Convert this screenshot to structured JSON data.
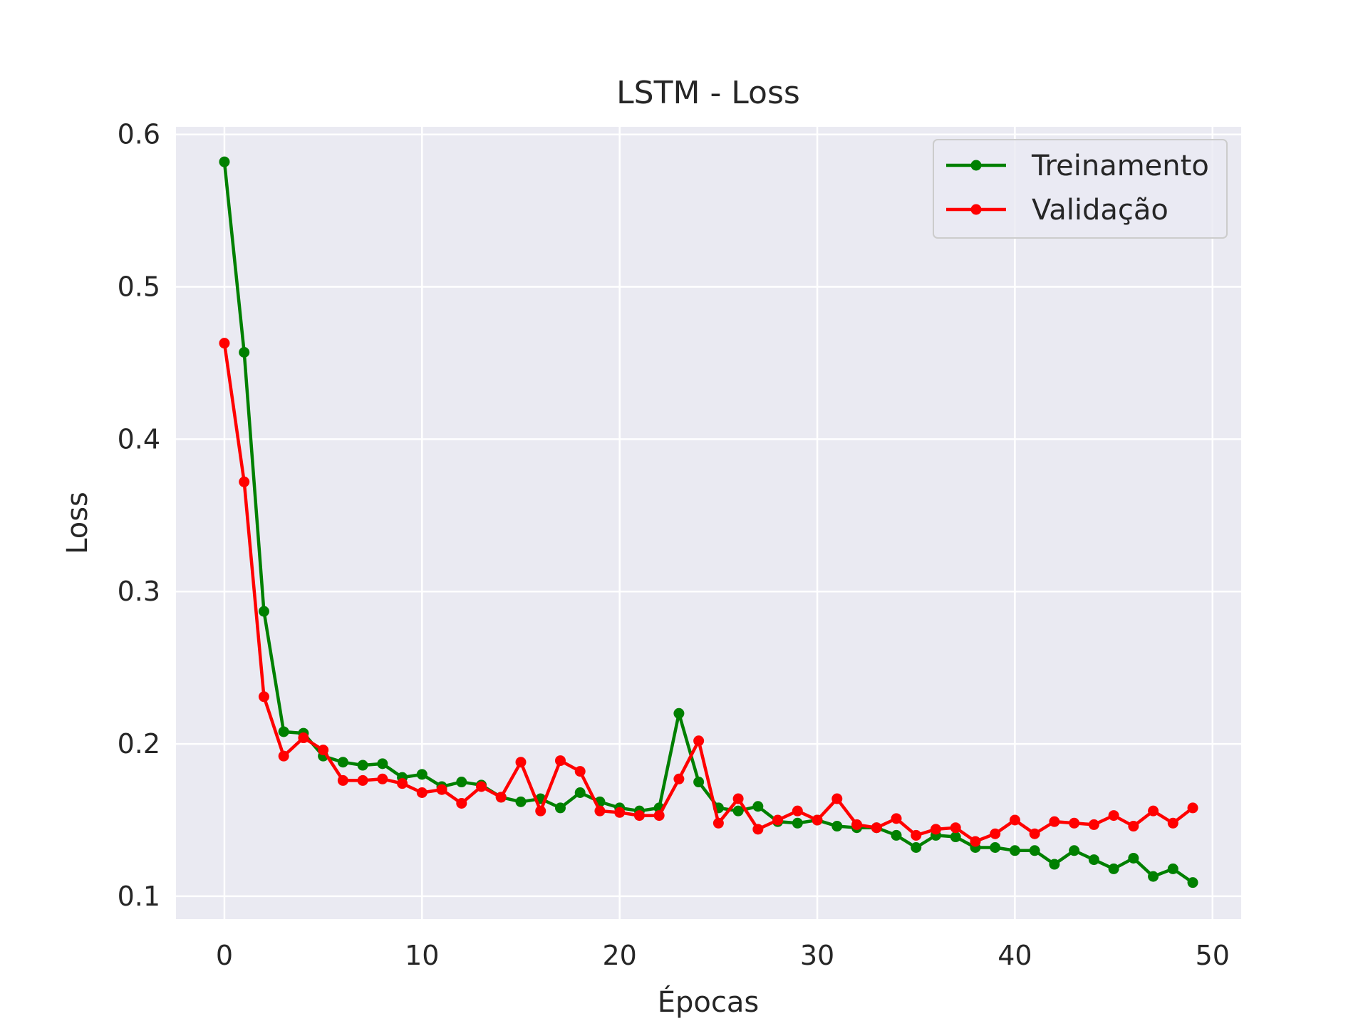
{
  "chart_data": {
    "type": "line",
    "title": "LSTM - Loss",
    "xlabel": "Épocas",
    "ylabel": "Loss",
    "xlim": [
      -2.45,
      51.45
    ],
    "ylim": [
      0.085,
      0.605
    ],
    "xticks": [
      0,
      10,
      20,
      30,
      40,
      50
    ],
    "yticks": [
      0.1,
      0.2,
      0.3,
      0.4,
      0.5,
      0.6
    ],
    "xtick_labels": [
      "0",
      "10",
      "20",
      "30",
      "40",
      "50"
    ],
    "ytick_labels": [
      "0.1",
      "0.2",
      "0.3",
      "0.4",
      "0.5",
      "0.6"
    ],
    "grid": true,
    "legend_position": "top-right",
    "background_color": "#eaeaf2",
    "grid_color": "#ffffff",
    "x": [
      0,
      1,
      2,
      3,
      4,
      5,
      6,
      7,
      8,
      9,
      10,
      11,
      12,
      13,
      14,
      15,
      16,
      17,
      18,
      19,
      20,
      21,
      22,
      23,
      24,
      25,
      26,
      27,
      28,
      29,
      30,
      31,
      32,
      33,
      34,
      35,
      36,
      37,
      38,
      39,
      40,
      41,
      42,
      43,
      44,
      45,
      46,
      47,
      48,
      49
    ],
    "series": [
      {
        "name": "Treinamento",
        "color": "#008000",
        "values": [
          0.582,
          0.457,
          0.287,
          0.208,
          0.207,
          0.192,
          0.188,
          0.186,
          0.187,
          0.178,
          0.18,
          0.172,
          0.175,
          0.173,
          0.165,
          0.162,
          0.164,
          0.158,
          0.168,
          0.162,
          0.158,
          0.156,
          0.158,
          0.22,
          0.175,
          0.158,
          0.156,
          0.159,
          0.149,
          0.148,
          0.15,
          0.146,
          0.145,
          0.145,
          0.14,
          0.132,
          0.14,
          0.139,
          0.132,
          0.132,
          0.13,
          0.13,
          0.121,
          0.13,
          0.124,
          0.118,
          0.125,
          0.113,
          0.118,
          0.109
        ]
      },
      {
        "name": "Validação",
        "color": "#ff0000",
        "values": [
          0.463,
          0.372,
          0.231,
          0.192,
          0.204,
          0.196,
          0.176,
          0.176,
          0.177,
          0.174,
          0.168,
          0.17,
          0.161,
          0.172,
          0.165,
          0.188,
          0.156,
          0.189,
          0.182,
          0.156,
          0.155,
          0.153,
          0.153,
          0.177,
          0.202,
          0.148,
          0.164,
          0.144,
          0.15,
          0.156,
          0.15,
          0.164,
          0.147,
          0.145,
          0.151,
          0.14,
          0.144,
          0.145,
          0.136,
          0.141,
          0.15,
          0.141,
          0.149,
          0.148,
          0.147,
          0.153,
          0.146,
          0.156,
          0.148,
          0.158
        ]
      }
    ]
  }
}
